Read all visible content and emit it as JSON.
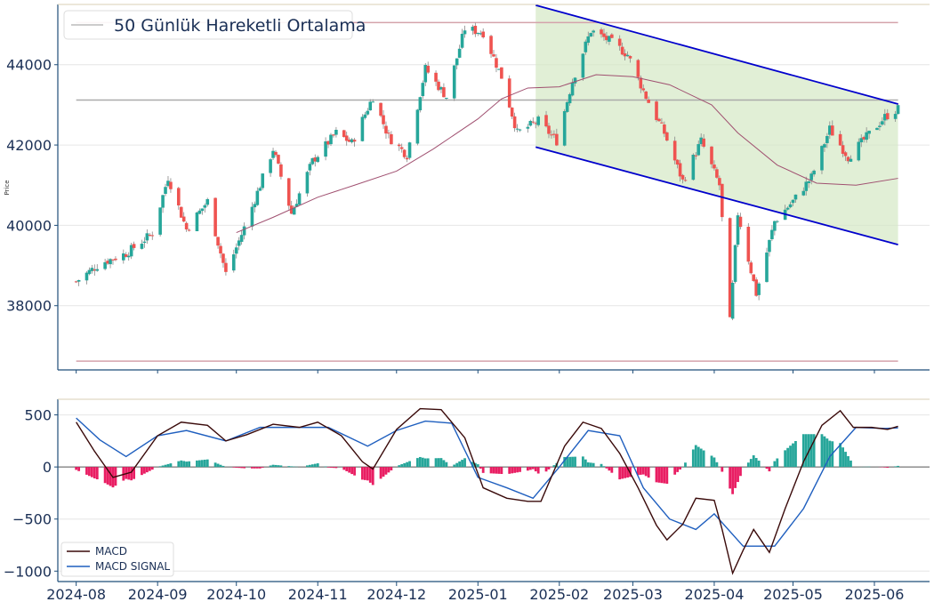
{
  "colors": {
    "up": "#26a69a",
    "down": "#ef5350",
    "hist_pos": "#26a69a",
    "hist_neg": "#e91e63",
    "ma": "#a05070",
    "macd": "#3a0a0a",
    "signal": "#1f5fbf",
    "channel_line": "#0000cc",
    "channel_fill": "#d4e8c4",
    "axis": "#1f4e79",
    "tick_text": "#1a2f55",
    "ref_line_red": "#d4a3ab",
    "ref_line_gray": "#aaaaaa"
  },
  "chart_data": [
    {
      "type": "candlestick",
      "ylabel": "Price",
      "ylim": [
        36400,
        45500
      ],
      "yticks": [
        {
          "v": 38000,
          "label": "38000"
        },
        {
          "v": 40000,
          "label": "40000"
        },
        {
          "v": 42000,
          "label": "42000"
        },
        {
          "v": 44000,
          "label": "44000"
        }
      ],
      "legend": {
        "position": "top-left",
        "label": "50 Günlük Hareketli Ortalama"
      },
      "grid": "horizontal",
      "reference_lines": [
        {
          "y": 45050,
          "x_start": "2024-08-01",
          "x_end": "2025-06-10",
          "color": "red"
        },
        {
          "y": 43120,
          "x_start": "2024-08-01",
          "x_end": "2025-06-10",
          "color": "gray"
        },
        {
          "y": 36620,
          "x_start": "2024-08-01",
          "x_end": "2025-06-10",
          "color": "red"
        }
      ],
      "channel": {
        "start": "2025-01-23",
        "end": "2025-06-10",
        "upper": [
          45480,
          43020
        ],
        "lower": [
          41950,
          39520
        ]
      },
      "moving_average_points": [
        [
          "2024-10-01",
          39820
        ],
        [
          "2024-10-15",
          40200
        ],
        [
          "2024-11-01",
          40700
        ],
        [
          "2024-11-15",
          41000
        ],
        [
          "2024-12-01",
          41350
        ],
        [
          "2024-12-15",
          41900
        ],
        [
          "2025-01-01",
          42650
        ],
        [
          "2025-01-10",
          43150
        ],
        [
          "2025-01-20",
          43420
        ],
        [
          "2025-02-01",
          43450
        ],
        [
          "2025-02-15",
          43750
        ],
        [
          "2025-03-01",
          43700
        ],
        [
          "2025-03-15",
          43500
        ],
        [
          "2025-03-31",
          43000
        ],
        [
          "2025-04-10",
          42300
        ],
        [
          "2025-04-25",
          41500
        ],
        [
          "2025-05-10",
          41050
        ],
        [
          "2025-05-25",
          41000
        ],
        [
          "2025-06-10",
          41170
        ]
      ],
      "price_anchors": [
        [
          "2024-08-01",
          38600
        ],
        [
          "2024-08-10",
          39050
        ],
        [
          "2024-08-20",
          39300
        ],
        [
          "2024-08-30",
          39800
        ],
        [
          "2024-09-05",
          41200
        ],
        [
          "2024-09-12",
          39900
        ],
        [
          "2024-09-20",
          40600
        ],
        [
          "2024-09-27",
          38800
        ],
        [
          "2024-10-05",
          40100
        ],
        [
          "2024-10-15",
          41900
        ],
        [
          "2024-10-22",
          40300
        ],
        [
          "2024-10-30",
          41600
        ],
        [
          "2024-11-08",
          42300
        ],
        [
          "2024-11-14",
          42050
        ],
        [
          "2024-11-22",
          43200
        ],
        [
          "2024-11-28",
          42200
        ],
        [
          "2024-12-05",
          41750
        ],
        [
          "2024-12-12",
          43900
        ],
        [
          "2024-12-20",
          43200
        ],
        [
          "2024-12-27",
          44900
        ],
        [
          "2025-01-03",
          44800
        ],
        [
          "2025-01-10",
          43700
        ],
        [
          "2025-01-16",
          42300
        ],
        [
          "2025-01-24",
          42600
        ],
        [
          "2025-01-31",
          42100
        ],
        [
          "2025-02-06",
          43600
        ],
        [
          "2025-02-13",
          44850
        ],
        [
          "2025-02-20",
          44600
        ],
        [
          "2025-02-27",
          44250
        ],
        [
          "2025-03-06",
          43200
        ],
        [
          "2025-03-13",
          42300
        ],
        [
          "2025-03-20",
          41100
        ],
        [
          "2025-03-27",
          42100
        ],
        [
          "2025-04-03",
          41000
        ],
        [
          "2025-04-07",
          37600
        ],
        [
          "2025-04-10",
          40300
        ],
        [
          "2025-04-17",
          38300
        ],
        [
          "2025-04-24",
          40100
        ],
        [
          "2025-05-01",
          40600
        ],
        [
          "2025-05-08",
          41200
        ],
        [
          "2025-05-15",
          42400
        ],
        [
          "2025-05-22",
          41700
        ],
        [
          "2025-05-29",
          42200
        ],
        [
          "2025-06-05",
          42700
        ],
        [
          "2025-06-10",
          42900
        ]
      ],
      "xticks": [
        "2024-08",
        "2024-09",
        "2024-10",
        "2024-11",
        "2024-12",
        "2025-01",
        "2025-02",
        "2025-03",
        "2025-04",
        "2025-05",
        "2025-06"
      ]
    },
    {
      "type": "macd",
      "ylim": [
        -1100,
        650
      ],
      "yticks": [
        {
          "v": -1000,
          "label": "−1000"
        },
        {
          "v": -500,
          "label": "−500"
        },
        {
          "v": 0,
          "label": "0"
        },
        {
          "v": 500,
          "label": "500"
        }
      ],
      "legend": {
        "position": "bottom-left",
        "entries": [
          "MACD",
          "MACD SIGNAL"
        ]
      },
      "macd_points": [
        [
          "2024-08-01",
          430
        ],
        [
          "2024-08-08",
          150
        ],
        [
          "2024-08-15",
          -100
        ],
        [
          "2024-08-22",
          -50
        ],
        [
          "2024-09-01",
          300
        ],
        [
          "2024-09-10",
          430
        ],
        [
          "2024-09-20",
          400
        ],
        [
          "2024-09-27",
          250
        ],
        [
          "2024-10-05",
          310
        ],
        [
          "2024-10-15",
          410
        ],
        [
          "2024-10-25",
          380
        ],
        [
          "2024-11-01",
          430
        ],
        [
          "2024-11-10",
          300
        ],
        [
          "2024-11-18",
          50
        ],
        [
          "2024-11-22",
          -20
        ],
        [
          "2024-12-01",
          360
        ],
        [
          "2024-12-10",
          560
        ],
        [
          "2024-12-18",
          550
        ],
        [
          "2024-12-27",
          280
        ],
        [
          "2025-01-03",
          -200
        ],
        [
          "2025-01-12",
          -300
        ],
        [
          "2025-01-20",
          -330
        ],
        [
          "2025-01-25",
          -330
        ],
        [
          "2025-02-03",
          200
        ],
        [
          "2025-02-10",
          430
        ],
        [
          "2025-02-17",
          370
        ],
        [
          "2025-02-24",
          130
        ],
        [
          "2025-03-03",
          -200
        ],
        [
          "2025-03-10",
          -560
        ],
        [
          "2025-03-14",
          -700
        ],
        [
          "2025-03-20",
          -550
        ],
        [
          "2025-03-25",
          -300
        ],
        [
          "2025-04-01",
          -320
        ],
        [
          "2025-04-04",
          -600
        ],
        [
          "2025-04-08",
          -1020
        ],
        [
          "2025-04-12",
          -800
        ],
        [
          "2025-04-16",
          -600
        ],
        [
          "2025-04-22",
          -820
        ],
        [
          "2025-04-28",
          -400
        ],
        [
          "2025-05-05",
          50
        ],
        [
          "2025-05-12",
          400
        ],
        [
          "2025-05-19",
          540
        ],
        [
          "2025-05-24",
          380
        ],
        [
          "2025-05-31",
          380
        ],
        [
          "2025-06-06",
          360
        ],
        [
          "2025-06-10",
          390
        ]
      ],
      "signal_points": [
        [
          "2024-08-01",
          470
        ],
        [
          "2024-08-10",
          260
        ],
        [
          "2024-08-20",
          100
        ],
        [
          "2024-09-01",
          300
        ],
        [
          "2024-09-12",
          350
        ],
        [
          "2024-09-27",
          250
        ],
        [
          "2024-10-10",
          380
        ],
        [
          "2024-10-25",
          380
        ],
        [
          "2024-11-05",
          380
        ],
        [
          "2024-11-20",
          200
        ],
        [
          "2024-12-01",
          350
        ],
        [
          "2024-12-12",
          440
        ],
        [
          "2024-12-22",
          420
        ],
        [
          "2025-01-01",
          -100
        ],
        [
          "2025-01-12",
          -200
        ],
        [
          "2025-01-22",
          -300
        ],
        [
          "2025-02-01",
          0
        ],
        [
          "2025-02-12",
          350
        ],
        [
          "2025-02-24",
          300
        ],
        [
          "2025-03-05",
          -200
        ],
        [
          "2025-03-15",
          -500
        ],
        [
          "2025-03-25",
          -600
        ],
        [
          "2025-04-01",
          -450
        ],
        [
          "2025-04-12",
          -760
        ],
        [
          "2025-04-24",
          -760
        ],
        [
          "2025-05-05",
          -400
        ],
        [
          "2025-05-15",
          100
        ],
        [
          "2025-05-25",
          380
        ],
        [
          "2025-06-05",
          370
        ],
        [
          "2025-06-10",
          375
        ]
      ],
      "xticks": [
        "2024-08",
        "2024-09",
        "2024-10",
        "2024-11",
        "2024-12",
        "2025-01",
        "2025-02",
        "2025-03",
        "2025-04",
        "2025-05",
        "2025-06"
      ]
    }
  ]
}
